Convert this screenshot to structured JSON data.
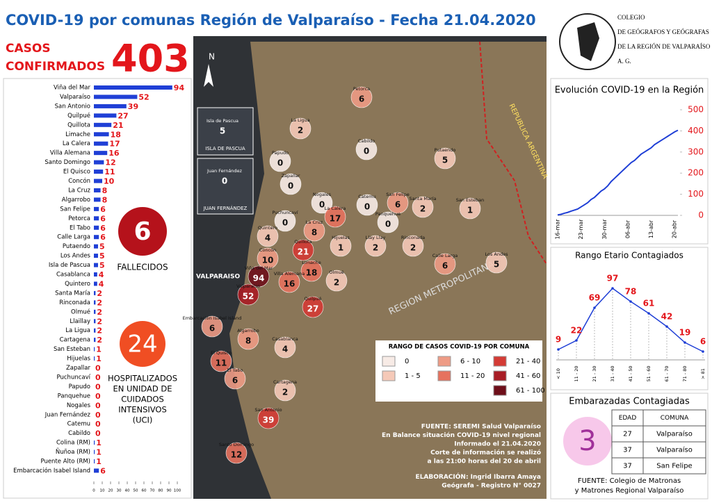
{
  "header": {
    "title": "COVID-19 por comunas Región de Valparaíso - Fecha 21.04.2020",
    "cases_label_1": "CASOS",
    "cases_label_2": "CONFIRMADOS",
    "cases_total": "403",
    "org_lines": [
      "COLEGIO",
      "DE GEÓGRAFOS Y GEÓGRAFAS",
      "DE LA REGIÓN DE VALPARAÍSO",
      "A. G."
    ]
  },
  "deaths": {
    "value": "6",
    "label": "FALLECIDOS"
  },
  "icu": {
    "value": "24",
    "lines": [
      "HOSPITALIZADOS",
      "EN UNIDAD DE",
      "CUIDADOS",
      "INTENSIVOS",
      "(UCI)"
    ]
  },
  "chart_data": [
    {
      "type": "hbar",
      "color": "#1f3fd6",
      "label_color": "#e3161b",
      "categories": [
        "Viña del Mar",
        "Valparaíso",
        "San Antonio",
        "Quilpué",
        "Quillota",
        "Limache",
        "La Calera",
        "Villa Alemana",
        "Santo Domingo",
        "El Quisco",
        "Concón",
        "La Cruz",
        "Algarrobo",
        "San Felipe",
        "Petorca",
        "El Tabo",
        "Calle Larga",
        "Putaendo",
        "Los Andes",
        "Isla de Pascua",
        "Casablanca",
        "Quintero",
        "Santa María",
        "Rinconada",
        "Olmué",
        "Llaillay",
        "La Ligua",
        "Cartagena",
        "San Esteban",
        "Hijuelas",
        "Zapallar",
        "Puchuncaví",
        "Papudo",
        "Panquehue",
        "Nogales",
        "Juan Fernández",
        "Catemu",
        "Cabildo",
        "Colina (RM)",
        "Ñuñoa (RM)",
        "Puente Alto (RM)",
        "Embarcación Isabel Island"
      ],
      "values": [
        94,
        52,
        39,
        27,
        21,
        18,
        17,
        16,
        12,
        11,
        10,
        8,
        8,
        6,
        6,
        6,
        6,
        5,
        5,
        5,
        4,
        4,
        2,
        2,
        2,
        2,
        2,
        2,
        1,
        1,
        0,
        0,
        0,
        0,
        0,
        0,
        0,
        0,
        1,
        1,
        1,
        6
      ],
      "xlim": [
        0,
        100
      ],
      "xticks": [
        0,
        10,
        20,
        30,
        40,
        50,
        60,
        70,
        80,
        90,
        100
      ]
    },
    {
      "type": "line",
      "title": "Evolución COVID-19 en la Región",
      "color": "#1f3fd6",
      "tick_color": "#e3161b",
      "categories": [
        "16-mar",
        null,
        null,
        null,
        null,
        null,
        null,
        "23-mar",
        null,
        null,
        null,
        null,
        null,
        null,
        "30-mar",
        null,
        null,
        null,
        null,
        null,
        null,
        "06-abr",
        null,
        null,
        null,
        null,
        null,
        null,
        "13-abr",
        null,
        null,
        null,
        null,
        null,
        null,
        "20-abr",
        null
      ],
      "values": [
        2,
        5,
        10,
        14,
        20,
        25,
        30,
        40,
        50,
        60,
        75,
        85,
        100,
        115,
        125,
        140,
        160,
        175,
        190,
        205,
        220,
        235,
        250,
        260,
        275,
        290,
        300,
        310,
        320,
        335,
        345,
        355,
        365,
        375,
        385,
        395,
        403
      ],
      "ylim": [
        0,
        500
      ],
      "yticks": [
        0,
        100,
        200,
        300,
        400,
        500
      ]
    },
    {
      "type": "line",
      "title": "Rango Etario Contagiados",
      "color": "#1f3fd6",
      "label_color": "#e3161b",
      "categories": [
        "< 10",
        "11 - 20",
        "21 - 30",
        "31 - 40",
        "41 - 50",
        "51 - 60",
        "61 - 70",
        "71 - 80",
        "> 81"
      ],
      "values": [
        9,
        22,
        69,
        97,
        78,
        61,
        42,
        19,
        6
      ]
    }
  ],
  "pregnant": {
    "title": "Embarazadas Contagiadas",
    "count": "3",
    "columns": [
      "EDAD",
      "COMUNA"
    ],
    "rows": [
      [
        "27",
        "Valparaíso"
      ],
      [
        "37",
        "Valparaíso"
      ],
      [
        "37",
        "San Felipe"
      ]
    ],
    "source": [
      "FUENTE: Colegio de Matronas",
      "y Matrones Regional Valparaíso"
    ]
  },
  "map": {
    "north": "N",
    "insets": [
      "ISLA DE PASCUA",
      "JUAN FERNÁNDEZ"
    ],
    "region_labels": [
      "VALPARAISO",
      "REGION METROPOLITANA",
      "REPUBLICA ARGENTINA"
    ],
    "communes": [
      {
        "name": "Petorca",
        "value": 6,
        "color": "#ee9b85"
      },
      {
        "name": "La Ligua",
        "value": 2,
        "color": "#f5c9b8"
      },
      {
        "name": "Cabildo",
        "value": 0,
        "color": "#f7ebe6"
      },
      {
        "name": "Papudo",
        "value": 0,
        "color": "#f7ebe6"
      },
      {
        "name": "Zapallar",
        "value": 0,
        "color": "#f7ebe6"
      },
      {
        "name": "Putaendo",
        "value": 5,
        "color": "#f5c9b8"
      },
      {
        "name": "Nogales",
        "value": 0,
        "color": "#f7ebe6"
      },
      {
        "name": "Puchuncaví",
        "value": 0,
        "color": "#f7ebe6"
      },
      {
        "name": "Catemu",
        "value": 0,
        "color": "#f7ebe6"
      },
      {
        "name": "San Felipe",
        "value": 6,
        "color": "#ee9b85"
      },
      {
        "name": "Santa María",
        "value": 2,
        "color": "#f5c9b8"
      },
      {
        "name": "San Esteban",
        "value": 1,
        "color": "#f5c9b8"
      },
      {
        "name": "Panquehue",
        "value": 0,
        "color": "#f7ebe6"
      },
      {
        "name": "La Cruz",
        "value": 8,
        "color": "#ee9b85"
      },
      {
        "name": "La Calera",
        "value": 17,
        "color": "#e6725e"
      },
      {
        "name": "Quintero",
        "value": 4,
        "color": "#f5c9b8"
      },
      {
        "name": "Hijuelas",
        "value": 1,
        "color": "#f5c9b8"
      },
      {
        "name": "Llay Llay",
        "value": 2,
        "color": "#f5c9b8"
      },
      {
        "name": "Rinconada",
        "value": 2,
        "color": "#f5c9b8"
      },
      {
        "name": "Quillota",
        "value": 21,
        "color": "#d43b35"
      },
      {
        "name": "Calle Larga",
        "value": 6,
        "color": "#ee9b85"
      },
      {
        "name": "Los Andes",
        "value": 5,
        "color": "#f5c9b8"
      },
      {
        "name": "Concón",
        "value": 10,
        "color": "#ee9b85"
      },
      {
        "name": "Viña del Mar",
        "value": 94,
        "color": "#6e0f1a"
      },
      {
        "name": "Limache",
        "value": 18,
        "color": "#e6725e"
      },
      {
        "name": "Olmué",
        "value": 2,
        "color": "#f5c9b8"
      },
      {
        "name": "Villa Alemana",
        "value": 16,
        "color": "#e6725e"
      },
      {
        "name": "Valparaíso",
        "value": 52,
        "color": "#a81d25"
      },
      {
        "name": "Quilpué",
        "value": 27,
        "color": "#d43b35"
      },
      {
        "name": "Embarcación Isabel Island",
        "value": 6,
        "color": "#ee9b85"
      },
      {
        "name": "Algarrobo",
        "value": 8,
        "color": "#ee9b85"
      },
      {
        "name": "Casablanca",
        "value": 4,
        "color": "#f5c9b8"
      },
      {
        "name": "El Quisco",
        "value": 11,
        "color": "#e6725e"
      },
      {
        "name": "El Tabo",
        "value": 6,
        "color": "#ee9b85"
      },
      {
        "name": "Cartagena",
        "value": 2,
        "color": "#f5c9b8"
      },
      {
        "name": "San Antonio",
        "value": 39,
        "color": "#d43b35"
      },
      {
        "name": "Santo Domingo",
        "value": 12,
        "color": "#e6725e"
      },
      {
        "name": "Isla de Pascua",
        "value": 5,
        "color": "#f5c9b8"
      },
      {
        "name": "Juan Fernández",
        "value": 0,
        "color": "#f7ebe6"
      }
    ],
    "legend": {
      "title": "RANGO DE CASOS COVID-19 POR COMUNA",
      "items": [
        {
          "label": "0",
          "color": "#f7ebe6"
        },
        {
          "label": "1 - 5",
          "color": "#f5c9b8"
        },
        {
          "label": "6 - 10",
          "color": "#ee9b85"
        },
        {
          "label": "11 - 20",
          "color": "#e6725e"
        },
        {
          "label": "21 - 40",
          "color": "#d43b35"
        },
        {
          "label": "41 - 60",
          "color": "#a81d25"
        },
        {
          "label": "61 - 100",
          "color": "#6e0f1a"
        }
      ]
    },
    "source": [
      "FUENTE: SEREMI Salud Valparaíso",
      "En Balance situación COVID-19 nivel regional",
      "Informado el 21.04.2020",
      "Corte de información se realizó",
      "a las 21:00 horas del 20 de abril",
      "ELABORACIÓN: Ingrid Ibarra Amaya",
      "Geógrafa - Registro N° 0027"
    ]
  }
}
